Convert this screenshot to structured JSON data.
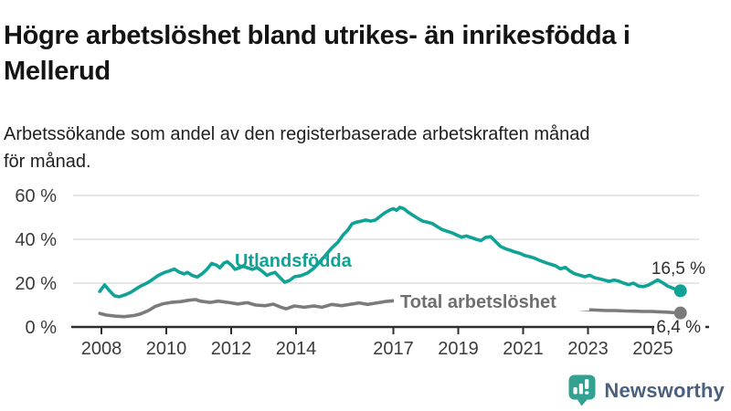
{
  "chart_data": {
    "type": "line",
    "title": "Högre arbetslöshet bland utrikes- än inrikesfödda i Mellerud",
    "subtitle": "Arbetssökande som andel av den registerbaserade arbetskraften månad för månad.",
    "unit": "%",
    "ylim": [
      0,
      60
    ],
    "xlim": [
      2007.9,
      2026.3
    ],
    "grid": "horizontal",
    "legend_position": "inline-annotations",
    "y_ticks": [
      {
        "label": "0 %",
        "value": 0
      },
      {
        "label": "20 %",
        "value": 20
      },
      {
        "label": "40 %",
        "value": 40
      },
      {
        "label": "60 %",
        "value": 60
      }
    ],
    "x_ticks": [
      {
        "label": "2008",
        "year": 2008
      },
      {
        "label": "2010",
        "year": 2010
      },
      {
        "label": "2012",
        "year": 2012
      },
      {
        "label": "2014",
        "year": 2014
      },
      {
        "label": "2017",
        "year": 2017
      },
      {
        "label": "2019",
        "year": 2019
      },
      {
        "label": "2021",
        "year": 2021
      },
      {
        "label": "2023",
        "year": 2023
      },
      {
        "label": "2025",
        "year": 2025
      }
    ],
    "series": [
      {
        "name": "Utlandsfödda",
        "color": "#10a295",
        "end_label": "16,5 %",
        "end_value": 16.5,
        "points": [
          [
            2007.95,
            16.2
          ],
          [
            2008.1,
            19.2
          ],
          [
            2008.25,
            16.5
          ],
          [
            2008.4,
            14.2
          ],
          [
            2008.55,
            13.8
          ],
          [
            2008.75,
            14.8
          ],
          [
            2008.9,
            15.8
          ],
          [
            2009.05,
            17.2
          ],
          [
            2009.2,
            18.6
          ],
          [
            2009.4,
            20.0
          ],
          [
            2009.55,
            21.4
          ],
          [
            2009.75,
            23.5
          ],
          [
            2009.95,
            24.9
          ],
          [
            2010.1,
            25.6
          ],
          [
            2010.25,
            26.4
          ],
          [
            2010.4,
            25.0
          ],
          [
            2010.55,
            24.2
          ],
          [
            2010.65,
            24.9
          ],
          [
            2010.8,
            23.5
          ],
          [
            2010.95,
            22.8
          ],
          [
            2011.1,
            24.2
          ],
          [
            2011.25,
            26.3
          ],
          [
            2011.4,
            29.0
          ],
          [
            2011.55,
            28.2
          ],
          [
            2011.65,
            27.0
          ],
          [
            2011.78,
            29.2
          ],
          [
            2011.88,
            29.8
          ],
          [
            2012.0,
            28.3
          ],
          [
            2012.12,
            26.3
          ],
          [
            2012.25,
            27.0
          ],
          [
            2012.38,
            27.7
          ],
          [
            2012.5,
            27.0
          ],
          [
            2012.65,
            26.3
          ],
          [
            2012.8,
            27.1
          ],
          [
            2012.95,
            25.5
          ],
          [
            2013.1,
            23.6
          ],
          [
            2013.22,
            24.3
          ],
          [
            2013.35,
            24.9
          ],
          [
            2013.5,
            22.6
          ],
          [
            2013.65,
            20.4
          ],
          [
            2013.8,
            21.2
          ],
          [
            2013.95,
            22.9
          ],
          [
            2014.15,
            23.4
          ],
          [
            2014.35,
            24.6
          ],
          [
            2014.55,
            26.8
          ],
          [
            2014.75,
            30.0
          ],
          [
            2014.95,
            33.4
          ],
          [
            2015.1,
            36.0
          ],
          [
            2015.3,
            38.8
          ],
          [
            2015.45,
            42.0
          ],
          [
            2015.6,
            44.3
          ],
          [
            2015.72,
            47.0
          ],
          [
            2015.85,
            47.8
          ],
          [
            2016.0,
            48.2
          ],
          [
            2016.15,
            48.8
          ],
          [
            2016.3,
            48.3
          ],
          [
            2016.45,
            48.8
          ],
          [
            2016.6,
            50.6
          ],
          [
            2016.75,
            52.2
          ],
          [
            2016.9,
            53.4
          ],
          [
            2017.0,
            54.0
          ],
          [
            2017.1,
            53.2
          ],
          [
            2017.2,
            54.6
          ],
          [
            2017.32,
            54.0
          ],
          [
            2017.45,
            52.4
          ],
          [
            2017.6,
            51.0
          ],
          [
            2017.75,
            49.6
          ],
          [
            2017.9,
            48.3
          ],
          [
            2018.05,
            47.8
          ],
          [
            2018.2,
            47.2
          ],
          [
            2018.35,
            45.8
          ],
          [
            2018.5,
            44.4
          ],
          [
            2018.65,
            43.7
          ],
          [
            2018.8,
            43.0
          ],
          [
            2018.95,
            42.0
          ],
          [
            2019.1,
            41.0
          ],
          [
            2019.25,
            41.5
          ],
          [
            2019.4,
            40.8
          ],
          [
            2019.55,
            40.0
          ],
          [
            2019.7,
            39.4
          ],
          [
            2019.85,
            40.9
          ],
          [
            2020.0,
            41.2
          ],
          [
            2020.15,
            39.0
          ],
          [
            2020.3,
            36.8
          ],
          [
            2020.45,
            35.7
          ],
          [
            2020.6,
            35.0
          ],
          [
            2020.75,
            34.2
          ],
          [
            2020.9,
            33.6
          ],
          [
            2021.05,
            32.6
          ],
          [
            2021.2,
            32.1
          ],
          [
            2021.35,
            31.4
          ],
          [
            2021.5,
            30.4
          ],
          [
            2021.7,
            29.3
          ],
          [
            2021.85,
            28.6
          ],
          [
            2022.0,
            27.9
          ],
          [
            2022.15,
            26.5
          ],
          [
            2022.3,
            27.2
          ],
          [
            2022.45,
            25.4
          ],
          [
            2022.6,
            24.2
          ],
          [
            2022.75,
            23.6
          ],
          [
            2022.9,
            22.9
          ],
          [
            2023.05,
            23.6
          ],
          [
            2023.2,
            22.5
          ],
          [
            2023.35,
            22.0
          ],
          [
            2023.5,
            21.4
          ],
          [
            2023.65,
            20.8
          ],
          [
            2023.8,
            21.4
          ],
          [
            2023.95,
            20.9
          ],
          [
            2024.1,
            20.0
          ],
          [
            2024.25,
            19.3
          ],
          [
            2024.4,
            20.0
          ],
          [
            2024.55,
            18.7
          ],
          [
            2024.7,
            18.4
          ],
          [
            2024.85,
            19.0
          ],
          [
            2025.0,
            20.2
          ],
          [
            2025.15,
            21.5
          ],
          [
            2025.3,
            20.2
          ],
          [
            2025.45,
            18.7
          ],
          [
            2025.6,
            17.8
          ],
          [
            2025.85,
            16.5
          ]
        ]
      },
      {
        "name": "Total arbetslöshet",
        "color": "#7b7b7b",
        "end_label": "6,4 %",
        "end_value": 6.4,
        "points": [
          [
            2007.95,
            6.2
          ],
          [
            2008.15,
            5.4
          ],
          [
            2008.45,
            4.9
          ],
          [
            2008.7,
            4.7
          ],
          [
            2009.0,
            5.2
          ],
          [
            2009.2,
            5.9
          ],
          [
            2009.45,
            7.5
          ],
          [
            2009.65,
            9.3
          ],
          [
            2009.9,
            10.6
          ],
          [
            2010.15,
            11.2
          ],
          [
            2010.45,
            11.6
          ],
          [
            2010.7,
            12.2
          ],
          [
            2010.9,
            12.5
          ],
          [
            2011.05,
            11.8
          ],
          [
            2011.35,
            11.2
          ],
          [
            2011.6,
            11.8
          ],
          [
            2011.9,
            11.2
          ],
          [
            2012.2,
            10.5
          ],
          [
            2012.5,
            11.1
          ],
          [
            2012.75,
            10.0
          ],
          [
            2013.05,
            9.7
          ],
          [
            2013.3,
            10.4
          ],
          [
            2013.55,
            8.9
          ],
          [
            2013.7,
            8.3
          ],
          [
            2013.95,
            9.6
          ],
          [
            2014.25,
            9.0
          ],
          [
            2014.55,
            9.6
          ],
          [
            2014.8,
            9.0
          ],
          [
            2015.1,
            10.3
          ],
          [
            2015.4,
            9.7
          ],
          [
            2015.65,
            10.3
          ],
          [
            2015.95,
            11.0
          ],
          [
            2016.2,
            10.3
          ],
          [
            2016.5,
            11.0
          ],
          [
            2016.8,
            11.7
          ],
          [
            2017.05,
            12.0
          ],
          [
            2017.3,
            11.5
          ],
          [
            2017.6,
            11.1
          ],
          [
            2017.9,
            10.7
          ],
          [
            2018.2,
            10.3
          ],
          [
            2018.5,
            9.9
          ],
          [
            2018.8,
            9.6
          ],
          [
            2019.1,
            9.3
          ],
          [
            2019.4,
            9.1
          ],
          [
            2019.7,
            8.9
          ],
          [
            2020.0,
            9.2
          ],
          [
            2020.3,
            9.9
          ],
          [
            2020.6,
            9.6
          ],
          [
            2020.9,
            9.3
          ],
          [
            2021.2,
            9.0
          ],
          [
            2021.5,
            8.8
          ],
          [
            2021.8,
            8.7
          ],
          [
            2022.1,
            8.5
          ],
          [
            2022.4,
            8.4
          ],
          [
            2022.65,
            8.3
          ],
          [
            2022.95,
            7.9
          ],
          [
            2023.25,
            7.7
          ],
          [
            2023.55,
            7.5
          ],
          [
            2023.85,
            7.5
          ],
          [
            2024.15,
            7.3
          ],
          [
            2024.45,
            7.2
          ],
          [
            2024.7,
            7.1
          ],
          [
            2024.95,
            7.1
          ],
          [
            2025.2,
            6.9
          ],
          [
            2025.4,
            6.8
          ],
          [
            2025.6,
            6.6
          ],
          [
            2025.85,
            6.4
          ]
        ]
      }
    ]
  },
  "branding": {
    "logo_text": "Newsworthy",
    "text_color": "#4a617e",
    "icon_color": "#31a292"
  }
}
